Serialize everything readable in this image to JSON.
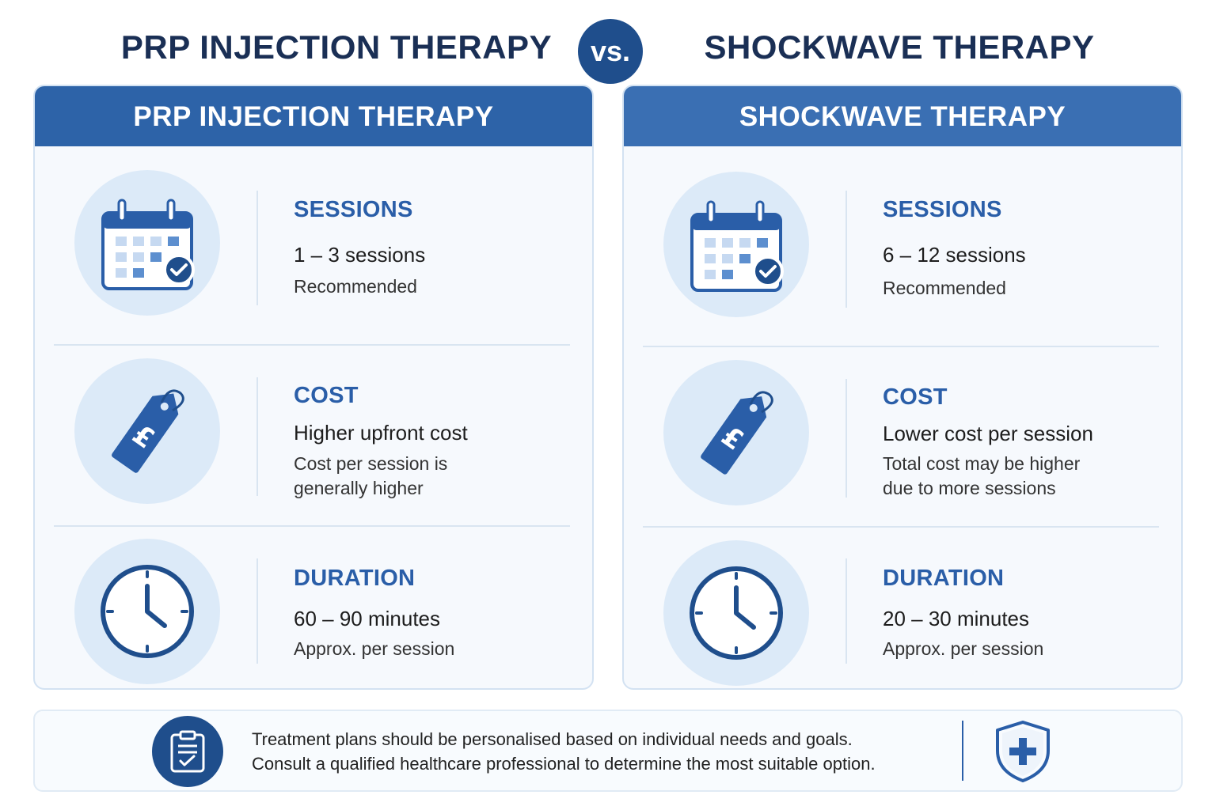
{
  "header": {
    "left_title": "PRP INJECTION THERAPY",
    "vs_label": "vs.",
    "right_title": "SHOCKWAVE THERAPY"
  },
  "colors": {
    "primary": "#2d63a8",
    "dark_navy": "#1f4e8c",
    "title_text": "#1a2f55",
    "icon_circle": "#dceaf8"
  },
  "cards": [
    {
      "title": "PRP INJECTION THERAPY",
      "rows": [
        {
          "icon": "calendar-check-icon",
          "label": "SESSIONS",
          "main": "1 – 3 sessions",
          "sub": [
            "Recommended"
          ]
        },
        {
          "icon": "price-tag-pound-icon",
          "label": "COST",
          "main": "Higher upfront cost",
          "sub": [
            "Cost per session is",
            "generally higher"
          ]
        },
        {
          "icon": "clock-icon",
          "label": "DURATION",
          "main": "60 – 90 minutes",
          "sub": [
            "Approx. per session"
          ]
        }
      ]
    },
    {
      "title": "SHOCKWAVE THERAPY",
      "rows": [
        {
          "icon": "calendar-check-icon",
          "label": "SESSIONS",
          "main": "6 – 12 sessions",
          "sub": [
            "Recommended"
          ]
        },
        {
          "icon": "price-tag-pound-icon",
          "label": "COST",
          "main": "Lower cost per session",
          "sub": [
            "Total cost may be higher",
            "due to more sessions"
          ]
        },
        {
          "icon": "clock-icon",
          "label": "DURATION",
          "main": "20 – 30 minutes",
          "sub": [
            "Approx. per session"
          ]
        }
      ]
    }
  ],
  "footer": {
    "lines": [
      "Treatment plans should be personalised based on individual needs and goals.",
      "Consult a qualified healthcare professional to determine the most suitable option."
    ],
    "left_icon": "clipboard-check-icon",
    "right_icon": "shield-plus-icon"
  }
}
